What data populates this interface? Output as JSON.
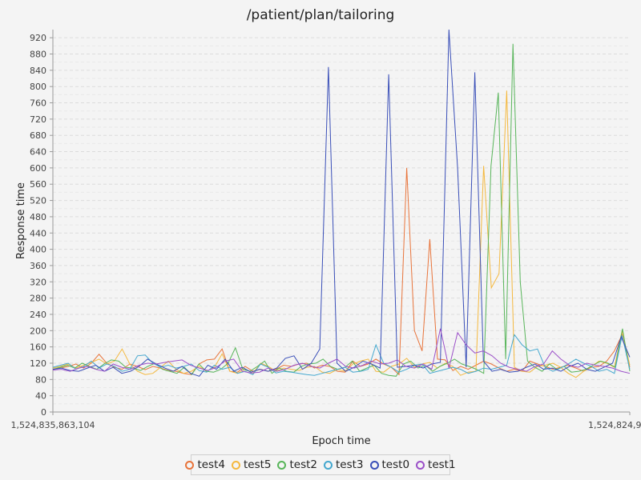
{
  "chart_data": {
    "type": "line",
    "title": "/patient/plan/tailoring",
    "xlabel": "Epoch time",
    "ylabel": "Response time",
    "ylim": [
      0,
      940
    ],
    "y_ticks": [
      0,
      40,
      80,
      120,
      160,
      200,
      240,
      280,
      320,
      360,
      400,
      440,
      480,
      520,
      560,
      600,
      640,
      680,
      720,
      760,
      800,
      840,
      880,
      920
    ],
    "x_tick_labels": [
      "1,524,835,863,104",
      "1,524,824,9"
    ],
    "grid": true,
    "legend_position": "bottom",
    "series": [
      {
        "name": "test4",
        "color": "#e8743b",
        "values": [
          105,
          108,
          112,
          118,
          108,
          120,
          142,
          120,
          110,
          105,
          118,
          112,
          104,
          112,
          108,
          102,
          100,
          95,
          92,
          118,
          128,
          130,
          155,
          100,
          98,
          112,
          100,
          105,
          100,
          105,
          115,
          112,
          118,
          120,
          108,
          115,
          112,
          100,
          98,
          125,
          112,
          118,
          130,
          118,
          110,
          92,
          600,
          200,
          150,
          425,
          130,
          128,
          102,
          112,
          105,
          115,
          125,
          118,
          108,
          100,
          105,
          100,
          125,
          118,
          112,
          105,
          110,
          115,
          108,
          100,
          110,
          112,
          125,
          150,
          190,
          110
        ]
      },
      {
        "name": "test5",
        "color": "#f4b83e",
        "values": [
          108,
          112,
          118,
          108,
          115,
          122,
          130,
          118,
          125,
          155,
          118,
          100,
          92,
          95,
          110,
          125,
          105,
          95,
          100,
          112,
          100,
          110,
          143,
          100,
          95,
          105,
          95,
          120,
          112,
          100,
          108,
          105,
          102,
          110,
          112,
          98,
          95,
          105,
          100,
          118,
          125,
          130,
          100,
          98,
          112,
          118,
          132,
          110,
          118,
          122,
          108,
          120,
          112,
          90,
          98,
          100,
          605,
          305,
          340,
          790,
          110,
          100,
          98,
          112,
          115,
          120,
          110,
          95,
          85,
          100,
          112,
          125,
          120,
          110,
          200,
          115
        ]
      },
      {
        "name": "test2",
        "color": "#58b55a",
        "values": [
          105,
          110,
          115,
          108,
          120,
          112,
          105,
          118,
          128,
          125,
          110,
          108,
          102,
          112,
          120,
          105,
          100,
          95,
          110,
          92,
          118,
          100,
          98,
          105,
          120,
          158,
          105,
          100,
          112,
          125,
          95,
          108,
          100,
          98,
          112,
          118,
          120,
          130,
          112,
          105,
          110,
          125,
          100,
          108,
          115,
          95,
          90,
          88,
          118,
          125,
          108,
          115,
          100,
          112,
          120,
          130,
          118,
          112,
          105,
          95,
          605,
          785,
          130,
          905,
          320,
          125,
          110,
          100,
          118,
          105,
          112,
          98,
          100,
          105,
          115,
          125,
          120,
          110,
          205,
          100
        ]
      },
      {
        "name": "test3",
        "color": "#45a8cf",
        "values": [
          110,
          115,
          120,
          105,
          112,
          125,
          108,
          118,
          112,
          100,
          105,
          138,
          140,
          120,
          110,
          115,
          108,
          112,
          118,
          102,
          98,
          115,
          105,
          110,
          95,
          100,
          92,
          118,
          110,
          96,
          100,
          98,
          95,
          92,
          90,
          95,
          100,
          105,
          110,
          98,
          100,
          105,
          165,
          120,
          110,
          98,
          105,
          115,
          118,
          95,
          100,
          105,
          110,
          105,
          95,
          100,
          108,
          105,
          110,
          115,
          190,
          165,
          150,
          155,
          110,
          100,
          108,
          118,
          130,
          120,
          112,
          100,
          105,
          95,
          188,
          105
        ]
      },
      {
        "name": "test0",
        "color": "#3a4fb8",
        "values": [
          105,
          108,
          102,
          100,
          108,
          115,
          100,
          110,
          95,
          100,
          112,
          130,
          118,
          108,
          100,
          112,
          95,
          88,
          115,
          105,
          130,
          100,
          110,
          98,
          105,
          100,
          108,
          132,
          138,
          105,
          120,
          155,
          848,
          120,
          100,
          110,
          125,
          118,
          108,
          830,
          110,
          112,
          115,
          108,
          118,
          122,
          940,
          600,
          110,
          835,
          125,
          100,
          105,
          98,
          100,
          110,
          118,
          105,
          108,
          100,
          112,
          120,
          105,
          100,
          110,
          120,
          185,
          135
        ]
      },
      {
        "name": "test1",
        "color": "#9b50c8",
        "values": [
          103,
          105,
          100,
          108,
          112,
          105,
          100,
          118,
          110,
          105,
          115,
          120,
          118,
          122,
          125,
          128,
          115,
          108,
          102,
          110,
          125,
          130,
          100,
          96,
          98,
          108,
          100,
          105,
          115,
          120,
          112,
          108,
          120,
          130,
          112,
          108,
          115,
          125,
          118,
          120,
          128,
          112,
          108,
          118,
          105,
          205,
          108,
          195,
          165,
          145,
          150,
          138,
          120,
          110,
          105,
          100,
          112,
          118,
          150,
          130,
          115,
          110,
          120,
          115,
          112,
          108,
          100,
          95
        ]
      }
    ]
  }
}
